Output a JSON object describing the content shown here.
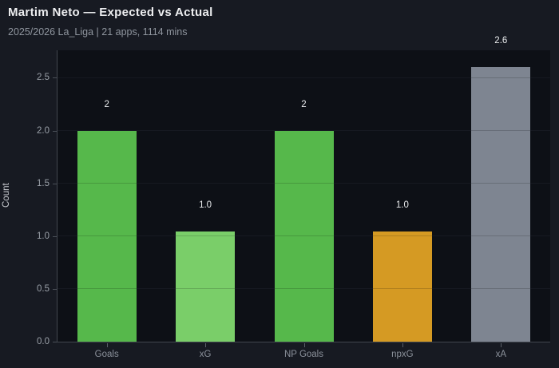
{
  "header": {
    "title": "Martim Neto — Expected vs Actual",
    "subtitle": "2025/2026 La_Liga | 21 apps, 1114 mins"
  },
  "chart_data": {
    "type": "bar",
    "title": "Martim Neto — Expected vs Actual",
    "subtitle": "2025/2026 La_Liga | 21 apps, 1114 mins",
    "categories": [
      "Goals",
      "xG",
      "NP Goals",
      "npxG",
      "xA"
    ],
    "values": [
      2,
      1.04,
      2,
      1.04,
      2.6
    ],
    "bar_labels": [
      "2",
      "1.0",
      "2",
      "1.0",
      "2.6"
    ],
    "bar_colors": [
      "#56b84b",
      "#7ace69",
      "#56b84b",
      "#d59a23",
      "#7e8591"
    ],
    "xlabel": "",
    "ylabel": "Count",
    "ylim": [
      0,
      2.76
    ],
    "yticks": [
      0,
      0.5,
      1,
      1.5,
      2,
      2.5
    ],
    "ytick_labels": [
      "0.0",
      "0.5",
      "1.0",
      "1.5",
      "2.0",
      "2.5"
    ],
    "grid": "horizontal",
    "legend": "none",
    "colors": {
      "background": "#171a22",
      "plot_background": "#0d1016",
      "axis": "#42464e",
      "tick_label": "#9aa0a8",
      "value_label": "#e8eaec",
      "title": "#edeef0",
      "subtitle": "#8f959e"
    }
  }
}
